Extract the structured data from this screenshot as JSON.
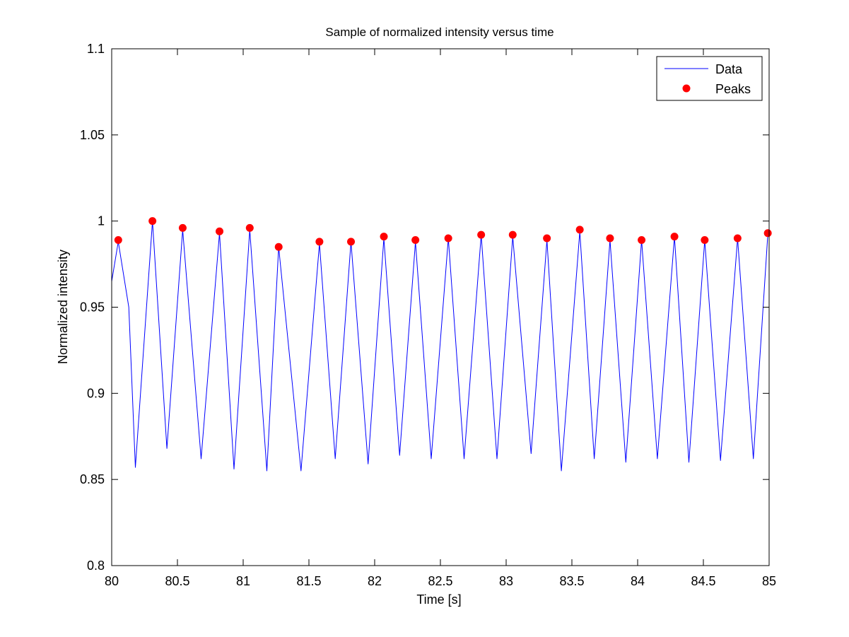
{
  "chart_data": {
    "type": "line",
    "title": "Sample of normalized intensity versus time",
    "xlabel": "Time [s]",
    "ylabel": "Normalized intensity",
    "xlim": [
      80,
      85
    ],
    "ylim": [
      0.8,
      1.1
    ],
    "xticks": [
      80,
      80.5,
      81,
      81.5,
      82,
      82.5,
      83,
      83.5,
      84,
      84.5,
      85
    ],
    "xtick_labels": [
      "80",
      "80.5",
      "81",
      "81.5",
      "82",
      "82.5",
      "83",
      "83.5",
      "84",
      "84.5",
      "85"
    ],
    "yticks": [
      0.8,
      0.85,
      0.9,
      0.95,
      1.0,
      1.05,
      1.1
    ],
    "ytick_labels": [
      "0.8",
      "0.85",
      "0.9",
      "0.95",
      "1",
      "1.05",
      "1.1"
    ],
    "grid": false,
    "legend_position": "top-right",
    "series": [
      {
        "name": "Data",
        "kind": "line",
        "color": "#0000ff",
        "x": [
          80.0,
          80.05,
          80.13,
          80.18,
          80.31,
          80.42,
          80.54,
          80.68,
          80.82,
          80.93,
          81.05,
          81.18,
          81.27,
          81.44,
          81.58,
          81.7,
          81.82,
          81.95,
          82.07,
          82.19,
          82.31,
          82.43,
          82.56,
          82.68,
          82.81,
          82.93,
          83.05,
          83.19,
          83.31,
          83.42,
          83.56,
          83.67,
          83.79,
          83.91,
          84.03,
          84.15,
          84.28,
          84.39,
          84.51,
          84.63,
          84.76,
          84.88,
          84.99
        ],
        "y": [
          0.965,
          0.988,
          0.95,
          0.857,
          1.0,
          0.868,
          0.995,
          0.862,
          0.993,
          0.856,
          0.995,
          0.855,
          0.985,
          0.855,
          0.987,
          0.862,
          0.988,
          0.859,
          0.99,
          0.864,
          0.988,
          0.862,
          0.99,
          0.862,
          0.992,
          0.862,
          0.991,
          0.865,
          0.989,
          0.855,
          0.994,
          0.862,
          0.989,
          0.86,
          0.989,
          0.862,
          0.991,
          0.86,
          0.989,
          0.861,
          0.99,
          0.862,
          0.992
        ]
      },
      {
        "name": "Peaks",
        "kind": "scatter",
        "color": "#ff0000",
        "x": [
          80.05,
          80.31,
          80.54,
          80.82,
          81.05,
          81.27,
          81.58,
          81.82,
          82.07,
          82.31,
          82.56,
          82.81,
          83.05,
          83.31,
          83.56,
          83.79,
          84.03,
          84.28,
          84.51,
          84.76,
          84.99
        ],
        "y": [
          0.989,
          1.0,
          0.996,
          0.994,
          0.996,
          0.985,
          0.988,
          0.988,
          0.991,
          0.989,
          0.99,
          0.992,
          0.992,
          0.99,
          0.995,
          0.99,
          0.989,
          0.991,
          0.989,
          0.99,
          0.993
        ]
      }
    ]
  }
}
